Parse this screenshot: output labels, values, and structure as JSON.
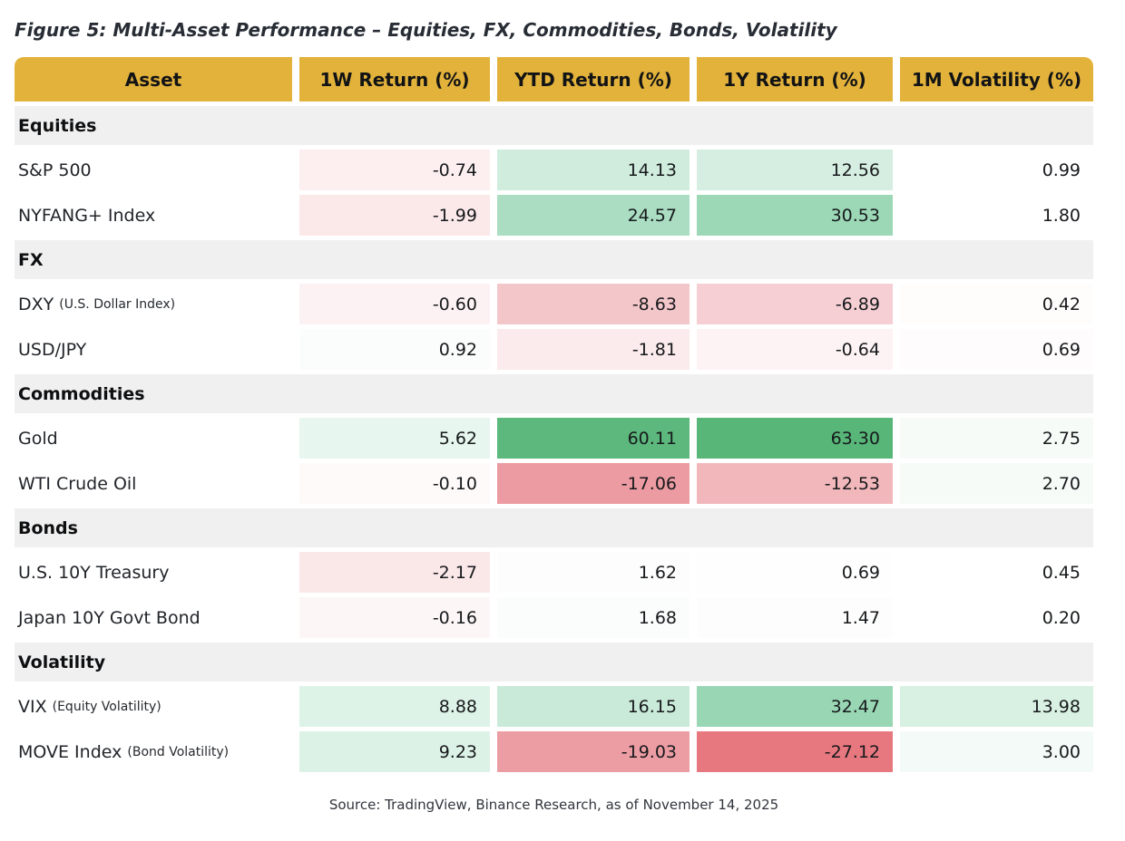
{
  "title": "Figure 5: Multi-Asset Performance – Equities, FX, Commodities, Bonds, Volatility",
  "source_note": "Source: TradingView, Binance Research, as of November 14, 2025",
  "colors": {
    "header_bg": "#e2b23b",
    "section_bg": "#f0f0f0",
    "strong_green": "#5cb87c",
    "strong_red": "#e7787f",
    "page_bg": "#ffffff"
  },
  "chart_data": {
    "type": "table",
    "title": "Figure 5: Multi-Asset Performance – Equities, FX, Commodities, Bonds, Volatility",
    "columns": [
      "Asset",
      "1W Return (%)",
      "YTD Return (%)",
      "1Y Return (%)",
      "1M Volatility (%)"
    ],
    "column_keys": [
      "1w-return",
      "ytd-return",
      "1y-return",
      "1m-volatility"
    ],
    "sections": [
      {
        "label": "Equities",
        "rows": [
          {
            "asset": "S&P 500",
            "note": "",
            "values": [
              -0.74,
              14.13,
              12.56,
              0.99
            ],
            "cell_colors": [
              "#fdeff0",
              "#cfecdd",
              "#d5eee1",
              "#ffffff"
            ]
          },
          {
            "asset": "NYFANG+ Index",
            "note": "",
            "values": [
              -1.99,
              24.57,
              30.53,
              1.8
            ],
            "cell_colors": [
              "#fbe9ea",
              "#aaddc2",
              "#9cd8b6",
              "#ffffff"
            ]
          }
        ]
      },
      {
        "label": "FX",
        "rows": [
          {
            "asset": "DXY",
            "note": "(U.S. Dollar Index)",
            "values": [
              -0.6,
              -8.63,
              -6.89,
              0.42
            ],
            "cell_colors": [
              "#fdf2f3",
              "#f3c6ca",
              "#f5cfd3",
              "#fffcfc"
            ]
          },
          {
            "asset": "USD/JPY",
            "note": "",
            "values": [
              0.92,
              -1.81,
              -0.64,
              0.69
            ],
            "cell_colors": [
              "#fbfdfc",
              "#fcebec",
              "#fdf3f4",
              "#fefcfc"
            ]
          }
        ]
      },
      {
        "label": "Commodities",
        "rows": [
          {
            "asset": "Gold",
            "note": "",
            "values": [
              5.62,
              60.11,
              63.3,
              2.75
            ],
            "cell_colors": [
              "#e7f6ee",
              "#5cb87c",
              "#58b678",
              "#f6fbf8"
            ]
          },
          {
            "asset": "WTI Crude Oil",
            "note": "",
            "values": [
              -0.1,
              -17.06,
              -12.53,
              2.7
            ],
            "cell_colors": [
              "#fefafa",
              "#eb9ba1",
              "#f2b7bb",
              "#f6fbf8"
            ]
          }
        ]
      },
      {
        "label": "Bonds",
        "rows": [
          {
            "asset": "U.S. 10Y Treasury",
            "note": "",
            "values": [
              -2.17,
              1.62,
              0.69,
              0.45
            ],
            "cell_colors": [
              "#fae8e9",
              "#fcfdfc",
              "#fdfefd",
              "#fefffe"
            ]
          },
          {
            "asset": "Japan 10Y Govt Bond",
            "note": "",
            "values": [
              -0.16,
              1.68,
              1.47,
              0.2
            ],
            "cell_colors": [
              "#fdf6f6",
              "#fbfdfc",
              "#fcfdfc",
              "#fefffe"
            ]
          }
        ]
      },
      {
        "label": "Volatility",
        "rows": [
          {
            "asset": "VIX",
            "note": "(Equity Volatility)",
            "values": [
              8.88,
              16.15,
              32.47,
              13.98
            ],
            "cell_colors": [
              "#def3e8",
              "#c9ead8",
              "#98d6b4",
              "#d8f1e2"
            ]
          },
          {
            "asset": "MOVE Index",
            "note": "(Bond Volatility)",
            "values": [
              9.23,
              -19.03,
              -27.12,
              3.0
            ],
            "cell_colors": [
              "#ddf2e7",
              "#ec9da3",
              "#e7787f",
              "#f4faf7"
            ]
          }
        ]
      }
    ]
  }
}
